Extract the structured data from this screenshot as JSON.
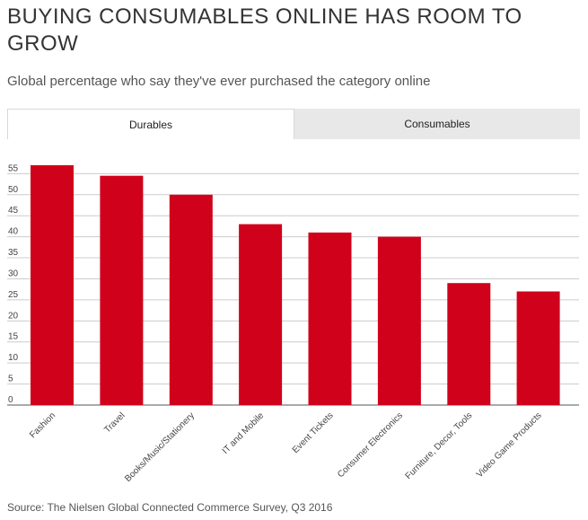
{
  "header": {
    "title": "BUYING CONSUMABLES ONLINE HAS ROOM TO GROW",
    "subtitle": "Global percentage who say they've ever purchased the category online"
  },
  "tabs": [
    {
      "label": "Durables",
      "active": true
    },
    {
      "label": "Consumables",
      "active": false
    }
  ],
  "colors": {
    "bar": "#d0021b",
    "grid": "#cccccc",
    "axis": "#555555",
    "tab_inactive": "#e8e8e8"
  },
  "chart_data": {
    "type": "bar",
    "title": "",
    "xlabel": "",
    "ylabel": "",
    "categories": [
      "Fashion",
      "Travel",
      "Books/Music/Stationery",
      "IT and Mobile",
      "Event Tickets",
      "Consumer Electronics",
      "Furniture, Decor, Tools",
      "Video Game Products"
    ],
    "values": [
      57,
      54.5,
      50,
      43,
      41,
      40,
      29,
      27
    ],
    "ylim": [
      0,
      57
    ],
    "yticks": [
      "0",
      "5",
      "10",
      "15",
      "20",
      "25",
      "30",
      "35",
      "40",
      "45",
      "50",
      "55"
    ],
    "grid": true,
    "legend": "none"
  },
  "footer": {
    "source": "Source: The Nielsen Global Connected Commerce Survey, Q3 2016"
  }
}
